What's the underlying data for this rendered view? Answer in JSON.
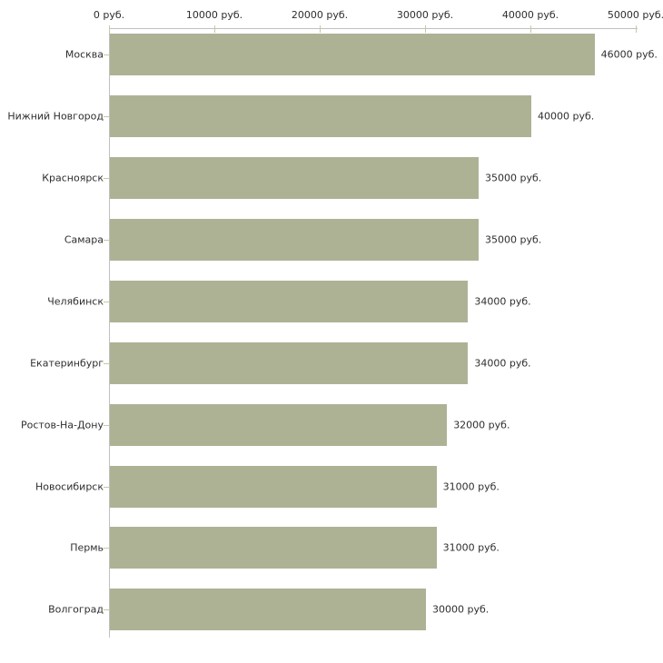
{
  "chart_data": {
    "type": "bar",
    "orientation": "horizontal",
    "title": "",
    "xlabel": "",
    "ylabel": "",
    "unit": "руб.",
    "categories": [
      "Москва",
      "Нижний Новгород",
      "Красноярск",
      "Самара",
      "Челябинск",
      "Екатеринбург",
      "Ростов-На-Дону",
      "Новосибирск",
      "Пермь",
      "Волгоград"
    ],
    "values": [
      46000,
      40000,
      35000,
      35000,
      34000,
      34000,
      32000,
      31000,
      31000,
      30000
    ],
    "value_labels": [
      "46000 руб.",
      "40000 руб.",
      "35000 руб.",
      "35000 руб.",
      "34000 руб.",
      "34000 руб.",
      "32000 руб.",
      "31000 руб.",
      "31000 руб.",
      "30000 руб."
    ],
    "x_ticks": [
      0,
      10000,
      20000,
      30000,
      40000,
      50000
    ],
    "x_tick_labels": [
      "0 руб.",
      "10000 руб.",
      "20000 руб.",
      "30000 руб.",
      "40000 руб.",
      "50000 руб."
    ],
    "xlim": [
      0,
      50000
    ],
    "grid": false,
    "legend": false,
    "axis_position": "top",
    "colors": {
      "bar": "#aeb295",
      "axis": "#c0c0c0",
      "tick": "#c8c8a0",
      "text": "#2e2e2e",
      "background": "#ffffff"
    }
  }
}
